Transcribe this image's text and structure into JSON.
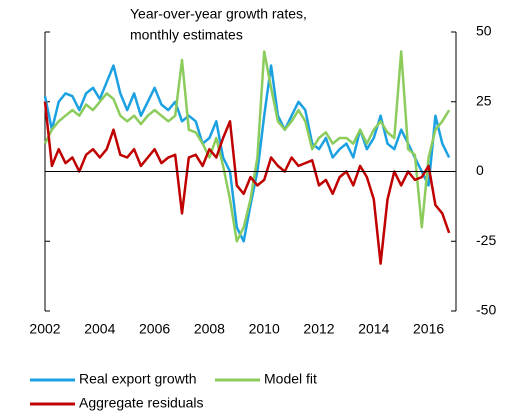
{
  "chart_data": {
    "type": "line",
    "subtitle": [
      "Year-over-year growth rates,",
      "monthly estimates"
    ],
    "x": [
      2002,
      2002.25,
      2002.5,
      2002.75,
      2003,
      2003.25,
      2003.5,
      2003.75,
      2004,
      2004.25,
      2004.5,
      2004.75,
      2005,
      2005.25,
      2005.5,
      2005.75,
      2006,
      2006.25,
      2006.5,
      2006.75,
      2007,
      2007.25,
      2007.5,
      2007.75,
      2008,
      2008.25,
      2008.5,
      2008.75,
      2009,
      2009.25,
      2009.5,
      2009.75,
      2010,
      2010.25,
      2010.5,
      2010.75,
      2011,
      2011.25,
      2011.5,
      2011.75,
      2012,
      2012.25,
      2012.5,
      2012.75,
      2013,
      2013.25,
      2013.5,
      2013.75,
      2014,
      2014.25,
      2014.5,
      2014.75,
      2015,
      2015.25,
      2015.5,
      2015.75,
      2016,
      2016.25,
      2016.5,
      2016.75
    ],
    "series": [
      {
        "name": "Real export growth",
        "color": "#1ba1e2",
        "values": [
          27,
          15,
          25,
          28,
          27,
          22,
          28,
          30,
          26,
          32,
          38,
          28,
          22,
          28,
          20,
          25,
          30,
          24,
          22,
          25,
          18,
          20,
          18,
          10,
          12,
          18,
          5,
          0,
          -20,
          -25,
          -12,
          0,
          20,
          38,
          20,
          15,
          20,
          25,
          22,
          10,
          8,
          12,
          5,
          8,
          10,
          5,
          15,
          8,
          12,
          20,
          10,
          8,
          15,
          10,
          5,
          0,
          -5,
          20,
          10,
          5
        ]
      },
      {
        "name": "Model fit",
        "color": "#8ccc5c",
        "values": [
          10,
          15,
          18,
          20,
          22,
          20,
          24,
          22,
          25,
          28,
          26,
          20,
          18,
          20,
          17,
          20,
          22,
          20,
          18,
          20,
          40,
          15,
          14,
          10,
          5,
          12,
          2,
          -10,
          -25,
          -20,
          -10,
          5,
          43,
          30,
          18,
          15,
          18,
          22,
          18,
          8,
          12,
          14,
          10,
          12,
          12,
          10,
          15,
          10,
          15,
          18,
          14,
          12,
          43,
          8,
          6,
          -20,
          5,
          15,
          18,
          22
        ]
      },
      {
        "name": "Aggregate residuals",
        "color": "#c00000",
        "values": [
          25,
          2,
          8,
          3,
          5,
          0,
          6,
          8,
          5,
          8,
          15,
          6,
          5,
          8,
          2,
          5,
          8,
          3,
          5,
          6,
          -15,
          5,
          6,
          2,
          8,
          5,
          12,
          18,
          -5,
          -8,
          -2,
          -5,
          -3,
          5,
          2,
          0,
          5,
          2,
          3,
          4,
          -5,
          -3,
          -8,
          -2,
          0,
          -5,
          2,
          -2,
          -10,
          -33,
          -10,
          0,
          -5,
          0,
          -3,
          -2,
          2,
          -12,
          -15,
          -22
        ]
      }
    ],
    "xlim": [
      2002,
      2017
    ],
    "xticks": [
      2002,
      2004,
      2006,
      2008,
      2010,
      2012,
      2014,
      2016
    ],
    "ylim": [
      -50,
      50
    ],
    "yticks": [
      -50,
      -25,
      0,
      25,
      50
    ]
  }
}
